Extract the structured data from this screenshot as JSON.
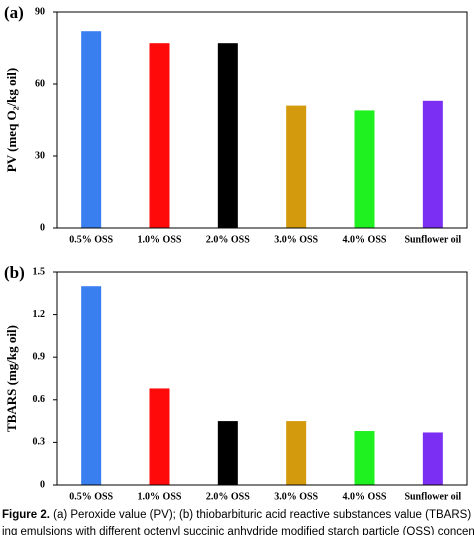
{
  "chart_data": [
    {
      "type": "bar",
      "panel": "(a)",
      "ylabel": "PV (meq O₂/kg oil)",
      "categories": [
        "0.5% OSS",
        "1.0% OSS",
        "2.0% OSS",
        "3.0% OSS",
        "4.0% OSS",
        "Sunflower oil"
      ],
      "values": [
        82,
        77,
        77,
        51,
        49,
        53
      ],
      "colors": [
        "#3a7ff0",
        "#ff0a0a",
        "#000000",
        "#d29a0c",
        "#1ff01f",
        "#7b2ff2"
      ],
      "ylim": [
        0,
        90
      ],
      "yticks": [
        0,
        30,
        60,
        90
      ]
    },
    {
      "type": "bar",
      "panel": "(b)",
      "ylabel": "TBARS (mg/kg oil)",
      "categories": [
        "0.5% OSS",
        "1.0% OSS",
        "2.0% OSS",
        "3.0% OSS",
        "4.0% OSS",
        "Sunflower oil"
      ],
      "values": [
        1.4,
        0.68,
        0.45,
        0.45,
        0.38,
        0.37
      ],
      "colors": [
        "#3a7ff0",
        "#ff0a0a",
        "#000000",
        "#d29a0c",
        "#1ff01f",
        "#7b2ff2"
      ],
      "ylim": [
        0,
        1.5
      ],
      "yticks": [
        0,
        0.3,
        0.6,
        0.9,
        1.2,
        1.5
      ]
    }
  ],
  "caption": {
    "label": "Figure 2.",
    "line1": "(a) Peroxide value (PV); (b) thiobarbituric acid reactive substances value (TBARS) of Picker",
    "line2": "ing emulsions with different octenyl succinic anhydride modified starch particle (OSS) concentration"
  }
}
